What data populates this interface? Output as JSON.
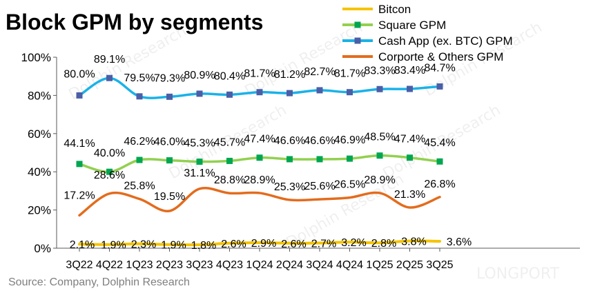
{
  "title": "Block GPM by segments",
  "source": "Source: Company, Dolphin Research",
  "watermarks": [
    "Dolphin Research",
    "LONGPORT"
  ],
  "chart_data": {
    "type": "line",
    "title": "Block GPM by segments",
    "categories": [
      "3Q22",
      "4Q22",
      "1Q23",
      "2Q23",
      "3Q23",
      "4Q23",
      "1Q24",
      "2Q24",
      "3Q24",
      "4Q24",
      "1Q25",
      "2Q25",
      "3Q25"
    ],
    "ylim": [
      0,
      100
    ],
    "yticks": [
      "0%",
      "20%",
      "40%",
      "60%",
      "80%",
      "100%"
    ],
    "legend_position": "top-right",
    "grid": false,
    "series": [
      {
        "name": "Bitcon",
        "color": "#f5c400",
        "marker": "none",
        "values": [
          2.1,
          1.9,
          2.3,
          1.9,
          1.8,
          2.6,
          2.9,
          2.6,
          2.7,
          3.2,
          2.8,
          3.8,
          3.6
        ],
        "labels": [
          "2.1%",
          "1.9%",
          "2.3%",
          "1.9%",
          "1.8%",
          "2.6%",
          "2.9%",
          "2.6%",
          "2.7%",
          "3.2%",
          "2.8%",
          "3.8%",
          "3.6%"
        ]
      },
      {
        "name": "Square GPM",
        "color": "#92d050",
        "marker": "square",
        "marker_color": "#00a651",
        "values": [
          44.1,
          40.0,
          46.2,
          46.0,
          45.3,
          45.7,
          47.4,
          46.6,
          46.6,
          46.9,
          48.5,
          47.4,
          45.4
        ],
        "labels": [
          "44.1%",
          "40.0%",
          "46.2%",
          "46.0%",
          "45.3%",
          "45.7%",
          "47.4%",
          "46.6%",
          "46.6%",
          "46.9%",
          "48.5%",
          "47.4%",
          "45.4%"
        ]
      },
      {
        "name": "Cash App (ex. BTC) GPM",
        "color": "#1ab2e8",
        "marker": "square",
        "marker_color": "#4a5fa8",
        "values": [
          80.0,
          89.1,
          79.5,
          79.3,
          80.9,
          80.4,
          81.7,
          81.2,
          82.7,
          81.7,
          83.3,
          83.4,
          84.7
        ],
        "labels": [
          "80.0%",
          "89.1%",
          "79.5%",
          "79.3%",
          "80.9%",
          "80.4%",
          "81.7%",
          "81.2%",
          "82.7%",
          "81.7%",
          "83.3%",
          "83.4%",
          "84.7%"
        ]
      },
      {
        "name": "Corporte & Others GPM",
        "color": "#e36c1d",
        "marker": "none",
        "values": [
          17.2,
          28.6,
          25.8,
          19.5,
          31.1,
          28.8,
          28.9,
          25.3,
          25.6,
          26.5,
          28.9,
          21.3,
          26.8
        ],
        "labels": [
          "17.2%",
          "28.6%",
          "25.8%",
          "19.5%",
          "31.1%",
          "28.8%",
          "28.9%",
          "25.3%",
          "25.6%",
          "26.5%",
          "28.9%",
          "21.3%",
          "26.8%"
        ]
      }
    ]
  }
}
